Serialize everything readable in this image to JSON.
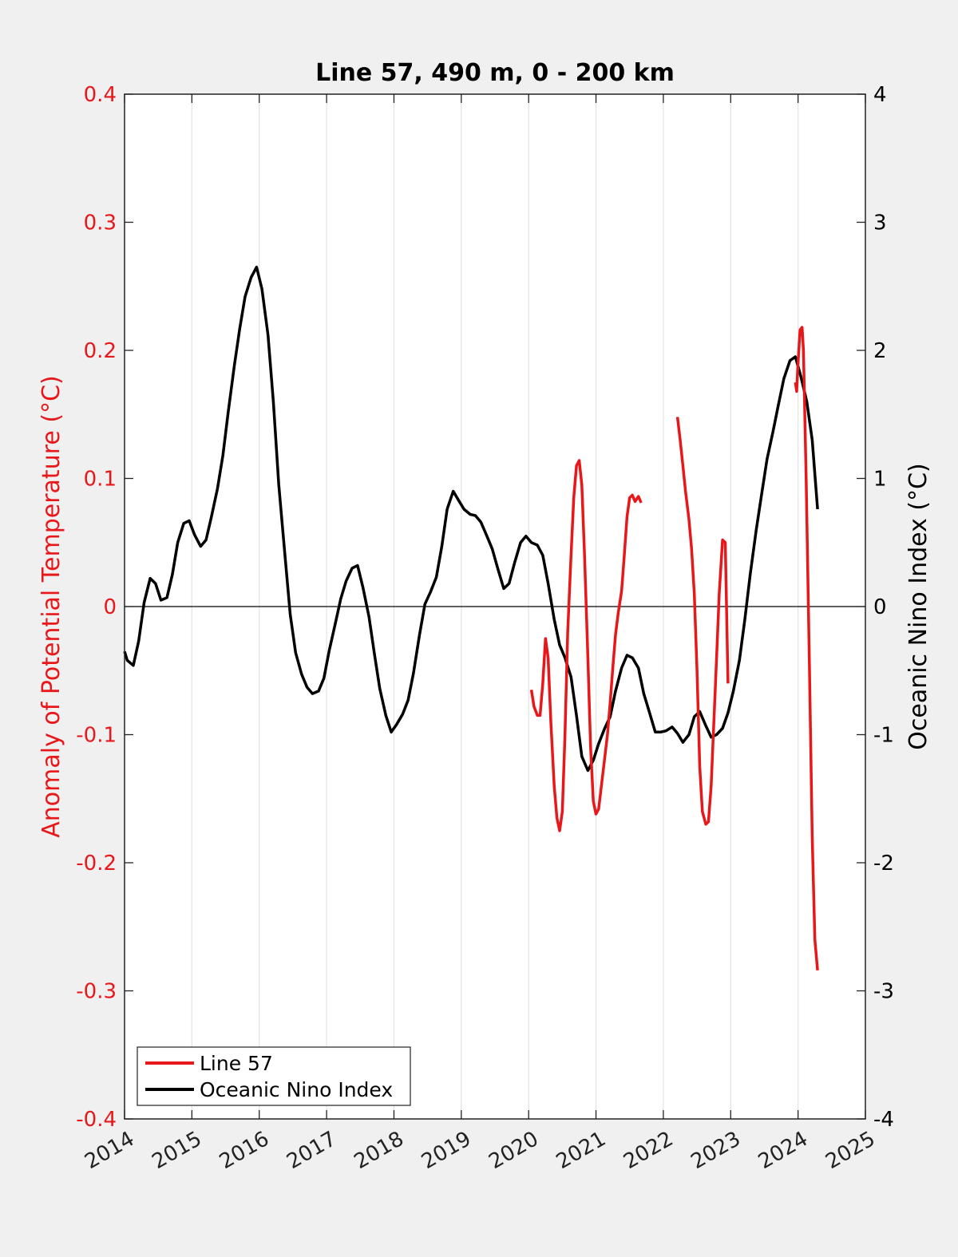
{
  "chart_data": {
    "type": "line",
    "title": "Line 57, 490 m, 0 - 200 km",
    "xlabel": "",
    "ylabel_left": "Anomaly of Potential Temperature (°C)",
    "ylabel_right": "Oceanic Nino Index (°C)",
    "xlim": [
      2014,
      2025
    ],
    "ylim_left": [
      -0.4,
      0.4
    ],
    "ylim_right": [
      -4,
      4
    ],
    "x_ticks": [
      "2014",
      "2015",
      "2016",
      "2017",
      "2018",
      "2019",
      "2020",
      "2021",
      "2022",
      "2023",
      "2024",
      "2025"
    ],
    "y_ticks_left": [
      "0.4",
      "0.3",
      "0.2",
      "0.1",
      "0",
      "-0.1",
      "-0.2",
      "-0.3",
      "-0.4"
    ],
    "y_ticks_right": [
      "4",
      "3",
      "2",
      "1",
      "0",
      "-1",
      "-2",
      "-3",
      "-4"
    ],
    "vertical_grid": true,
    "zero_line": true,
    "legend_position": "bottom-left",
    "colors": {
      "left_axis": "#e8171a",
      "line57": "#e8171a",
      "oni": "#000000",
      "right_axis": "#000000"
    },
    "series": [
      {
        "name": "Line 57",
        "axis": "left",
        "segments": [
          [
            [
              2020.04,
              -0.065
            ],
            [
              2020.08,
              -0.078
            ],
            [
              2020.13,
              -0.085
            ],
            [
              2020.17,
              -0.085
            ],
            [
              2020.21,
              -0.06
            ],
            [
              2020.25,
              -0.025
            ],
            [
              2020.29,
              -0.04
            ],
            [
              2020.33,
              -0.09
            ],
            [
              2020.38,
              -0.14
            ],
            [
              2020.42,
              -0.165
            ],
            [
              2020.46,
              -0.175
            ],
            [
              2020.5,
              -0.16
            ],
            [
              2020.54,
              -0.1
            ],
            [
              2020.58,
              -0.02
            ],
            [
              2020.63,
              0.04
            ],
            [
              2020.67,
              0.085
            ],
            [
              2020.71,
              0.11
            ],
            [
              2020.75,
              0.114
            ],
            [
              2020.79,
              0.095
            ],
            [
              2020.83,
              0.04
            ],
            [
              2020.88,
              -0.04
            ],
            [
              2020.92,
              -0.11
            ],
            [
              2020.96,
              -0.152
            ],
            [
              2021.0,
              -0.162
            ],
            [
              2021.04,
              -0.158
            ],
            [
              2021.08,
              -0.14
            ],
            [
              2021.13,
              -0.118
            ],
            [
              2021.17,
              -0.1
            ],
            [
              2021.21,
              -0.075
            ],
            [
              2021.25,
              -0.048
            ],
            [
              2021.29,
              -0.022
            ],
            [
              2021.33,
              -0.005
            ],
            [
              2021.38,
              0.012
            ],
            [
              2021.42,
              0.04
            ],
            [
              2021.46,
              0.07
            ],
            [
              2021.5,
              0.085
            ],
            [
              2021.54,
              0.087
            ],
            [
              2021.58,
              0.082
            ],
            [
              2021.63,
              0.086
            ],
            [
              2021.67,
              0.081
            ]
          ],
          [
            [
              2022.21,
              0.148
            ],
            [
              2022.25,
              0.13
            ],
            [
              2022.29,
              0.11
            ],
            [
              2022.33,
              0.09
            ],
            [
              2022.38,
              0.068
            ],
            [
              2022.42,
              0.045
            ],
            [
              2022.46,
              0.01
            ],
            [
              2022.5,
              -0.05
            ],
            [
              2022.54,
              -0.125
            ],
            [
              2022.58,
              -0.16
            ],
            [
              2022.63,
              -0.17
            ],
            [
              2022.67,
              -0.168
            ],
            [
              2022.71,
              -0.14
            ],
            [
              2022.75,
              -0.09
            ],
            [
              2022.79,
              -0.04
            ],
            [
              2022.83,
              0.01
            ],
            [
              2022.88,
              0.052
            ],
            [
              2022.92,
              0.05
            ],
            [
              2022.96,
              -0.06
            ]
          ],
          [
            [
              2023.96,
              0.175
            ],
            [
              2023.98,
              0.168
            ],
            [
              2024.0,
              0.19
            ],
            [
              2024.03,
              0.216
            ],
            [
              2024.06,
              0.218
            ],
            [
              2024.08,
              0.2
            ],
            [
              2024.12,
              0.1
            ],
            [
              2024.17,
              -0.05
            ],
            [
              2024.21,
              -0.18
            ],
            [
              2024.25,
              -0.26
            ],
            [
              2024.29,
              -0.284
            ]
          ]
        ]
      },
      {
        "name": "Oceanic Nino Index",
        "axis": "right",
        "x": [
          2014.0,
          2014.04,
          2014.13,
          2014.21,
          2014.29,
          2014.38,
          2014.46,
          2014.54,
          2014.63,
          2014.71,
          2014.79,
          2014.88,
          2014.96,
          2015.04,
          2015.13,
          2015.21,
          2015.29,
          2015.38,
          2015.46,
          2015.54,
          2015.63,
          2015.71,
          2015.79,
          2015.88,
          2015.96,
          2016.04,
          2016.13,
          2016.21,
          2016.29,
          2016.38,
          2016.46,
          2016.54,
          2016.63,
          2016.71,
          2016.79,
          2016.88,
          2016.96,
          2017.04,
          2017.13,
          2017.21,
          2017.29,
          2017.38,
          2017.46,
          2017.54,
          2017.63,
          2017.71,
          2017.79,
          2017.88,
          2017.96,
          2018.04,
          2018.13,
          2018.21,
          2018.29,
          2018.38,
          2018.46,
          2018.54,
          2018.63,
          2018.71,
          2018.79,
          2018.88,
          2018.96,
          2019.04,
          2019.13,
          2019.21,
          2019.29,
          2019.38,
          2019.46,
          2019.54,
          2019.63,
          2019.71,
          2019.79,
          2019.88,
          2019.96,
          2020.04,
          2020.13,
          2020.21,
          2020.29,
          2020.38,
          2020.46,
          2020.54,
          2020.63,
          2020.71,
          2020.79,
          2020.88,
          2020.96,
          2021.04,
          2021.13,
          2021.21,
          2021.29,
          2021.38,
          2021.46,
          2021.54,
          2021.63,
          2021.71,
          2021.79,
          2021.88,
          2021.96,
          2022.04,
          2022.13,
          2022.21,
          2022.29,
          2022.38,
          2022.46,
          2022.54,
          2022.63,
          2022.71,
          2022.79,
          2022.88,
          2022.96,
          2023.04,
          2023.13,
          2023.21,
          2023.29,
          2023.38,
          2023.46,
          2023.54,
          2023.63,
          2023.71,
          2023.79,
          2023.88,
          2023.96,
          2024.04,
          2024.13,
          2024.21,
          2024.29
        ],
        "y": [
          -0.35,
          -0.42,
          -0.46,
          -0.27,
          0.03,
          0.22,
          0.18,
          0.05,
          0.07,
          0.25,
          0.5,
          0.65,
          0.67,
          0.56,
          0.47,
          0.52,
          0.7,
          0.92,
          1.18,
          1.52,
          1.88,
          2.17,
          2.42,
          2.57,
          2.65,
          2.48,
          2.12,
          1.6,
          0.95,
          0.41,
          -0.06,
          -0.36,
          -0.53,
          -0.63,
          -0.68,
          -0.66,
          -0.56,
          -0.34,
          -0.13,
          0.06,
          0.2,
          0.3,
          0.32,
          0.15,
          -0.08,
          -0.37,
          -0.64,
          -0.85,
          -0.98,
          -0.92,
          -0.84,
          -0.73,
          -0.52,
          -0.22,
          0.02,
          0.11,
          0.23,
          0.47,
          0.76,
          0.9,
          0.83,
          0.76,
          0.72,
          0.71,
          0.66,
          0.55,
          0.45,
          0.3,
          0.14,
          0.18,
          0.34,
          0.5,
          0.55,
          0.5,
          0.48,
          0.4,
          0.18,
          -0.1,
          -0.3,
          -0.4,
          -0.55,
          -0.85,
          -1.17,
          -1.28,
          -1.2,
          -1.07,
          -0.95,
          -0.86,
          -0.66,
          -0.48,
          -0.38,
          -0.4,
          -0.48,
          -0.68,
          -0.82,
          -0.98,
          -0.98,
          -0.97,
          -0.94,
          -0.99,
          -1.06,
          -1.0,
          -0.86,
          -0.82,
          -0.93,
          -1.02,
          -1.0,
          -0.95,
          -0.83,
          -0.66,
          -0.42,
          -0.1,
          0.25,
          0.6,
          0.88,
          1.15,
          1.37,
          1.58,
          1.78,
          1.92,
          1.95,
          1.8,
          1.6,
          1.3,
          0.76
        ]
      }
    ]
  }
}
